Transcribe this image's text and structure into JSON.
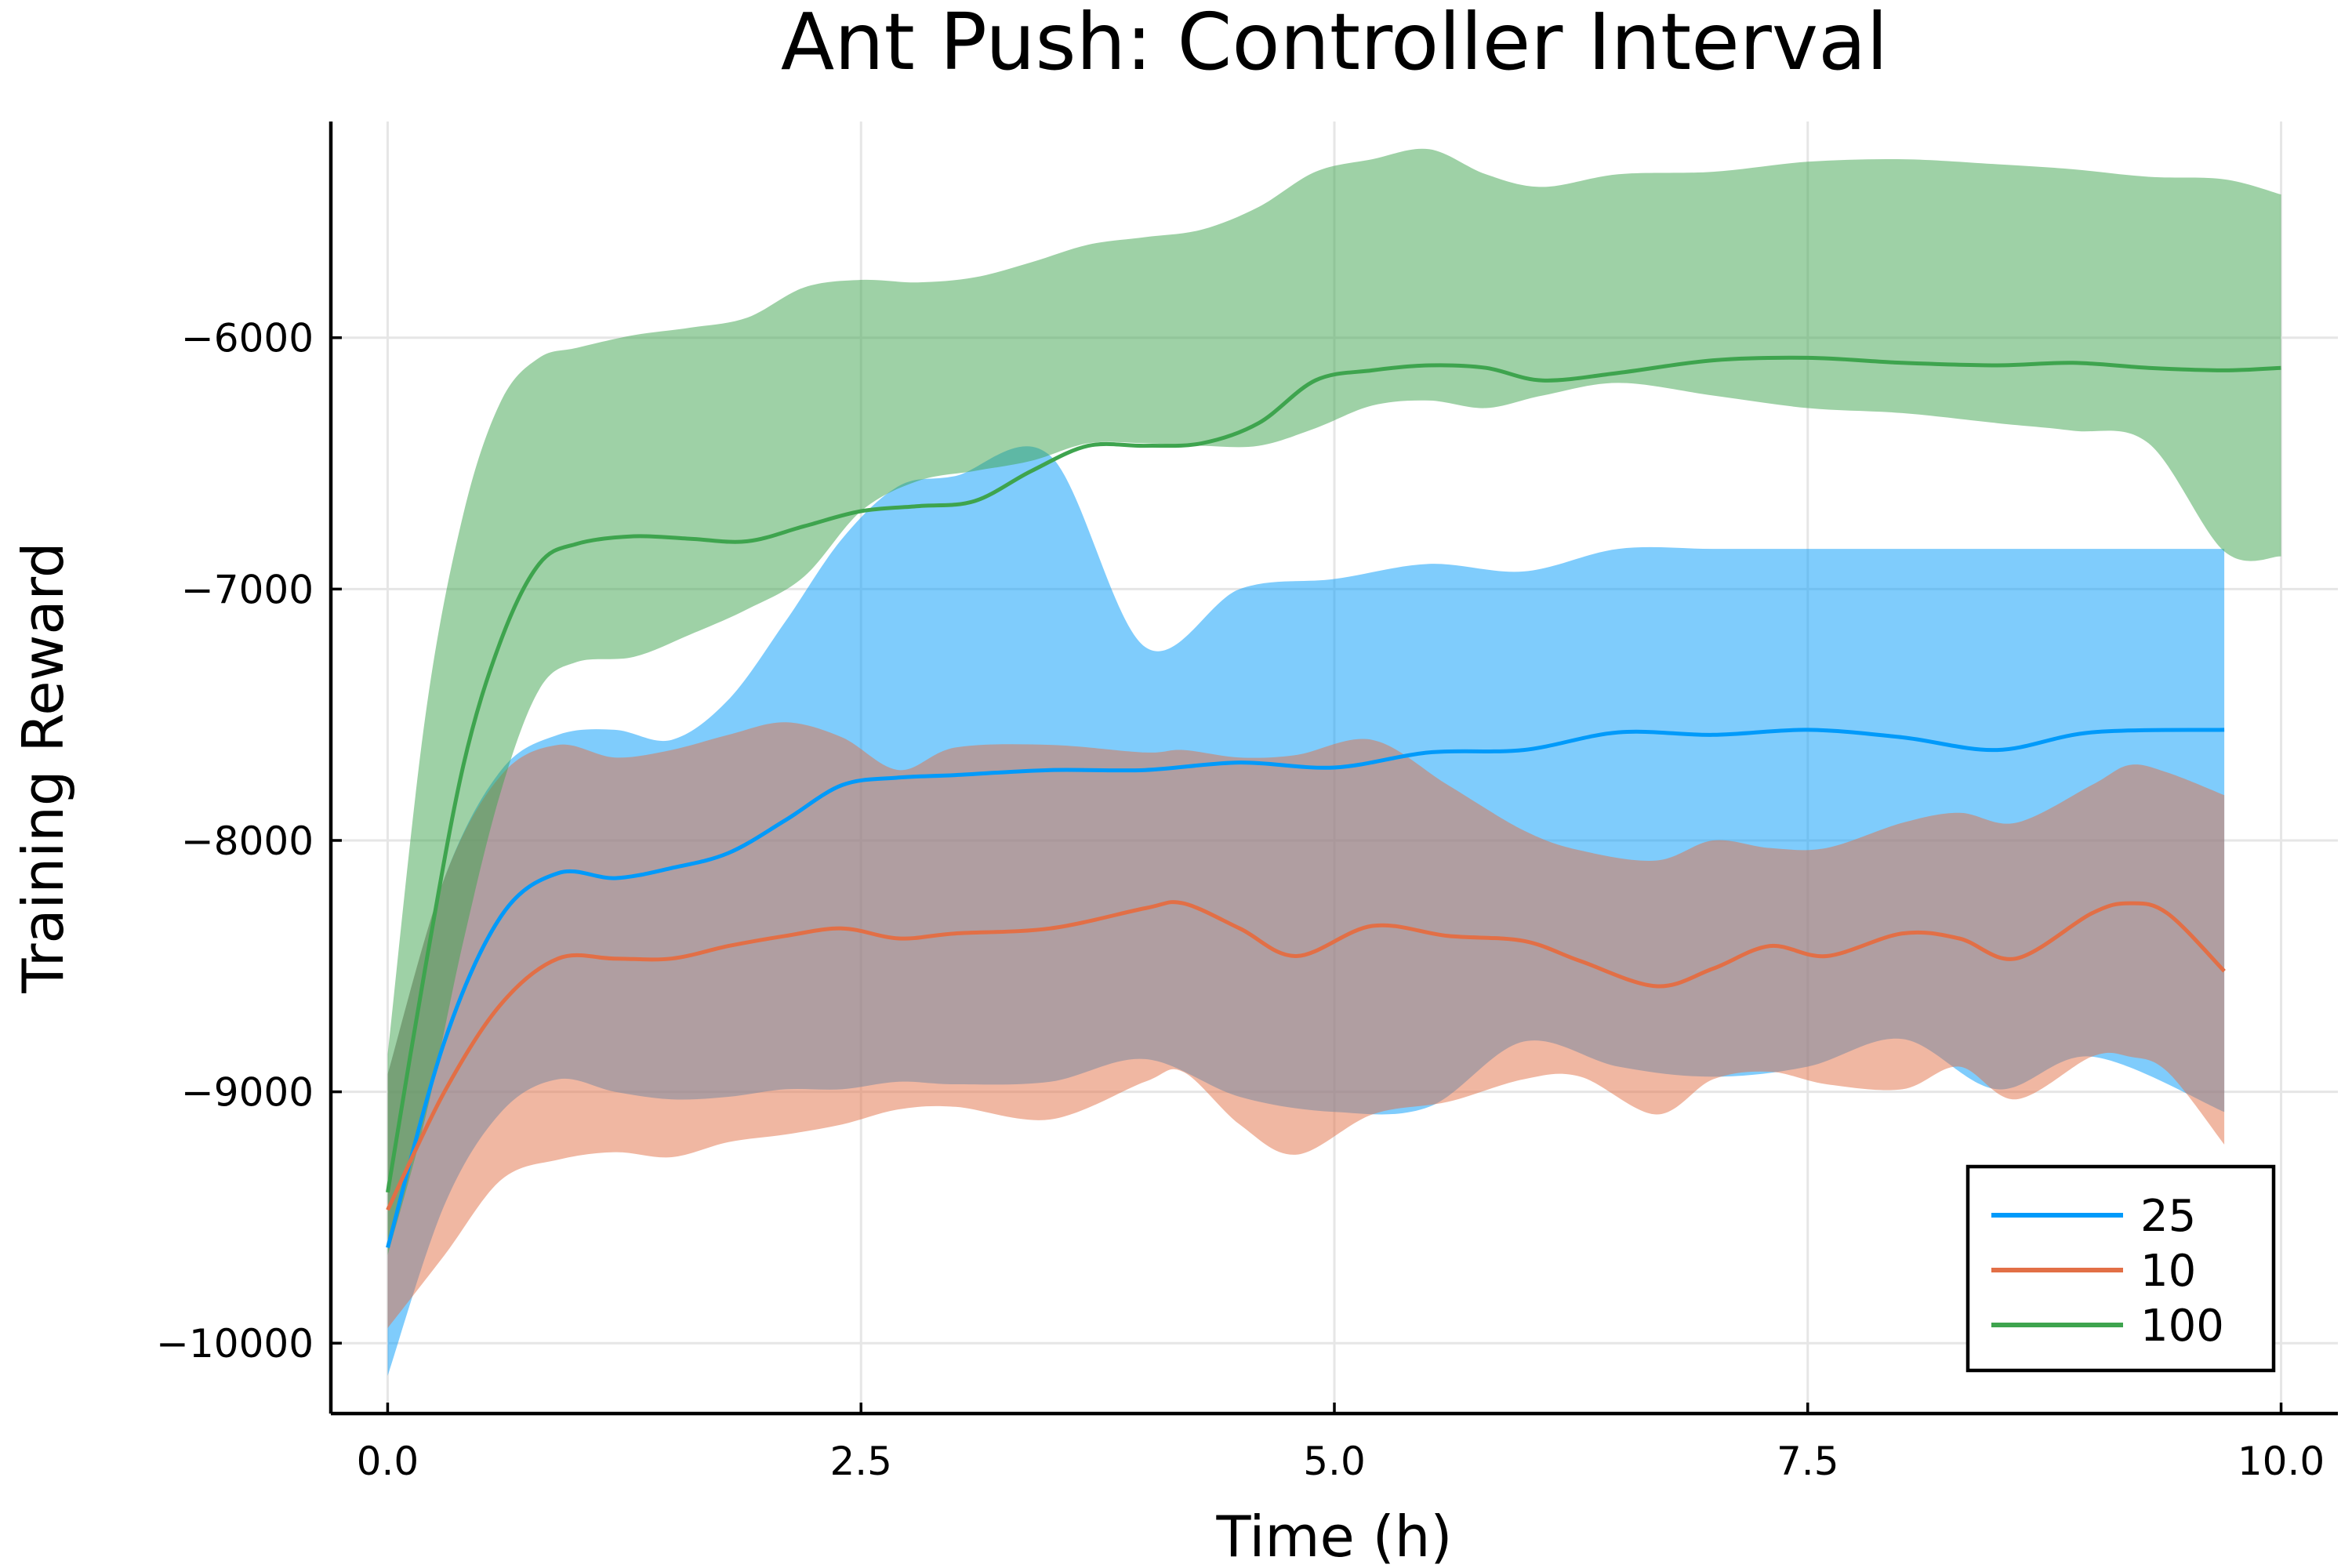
{
  "chart_data": {
    "type": "line",
    "title": "Ant Push: Controller Interval",
    "xlabel": "Time (h)",
    "ylabel": "Training Reward",
    "xlim": [
      -0.3,
      10.3
    ],
    "ylim": [
      -10280,
      -5140
    ],
    "x_ticks": [
      0,
      2.5,
      5,
      7.5,
      10
    ],
    "x_tick_labels": [
      "0.0",
      "2.5",
      "5.0",
      "7.5",
      "10.0"
    ],
    "y_ticks": [
      -10000,
      -9000,
      -8000,
      -7000,
      -6000
    ],
    "y_tick_labels": [
      "−10000",
      "−9000",
      "−8000",
      "−7000",
      "−6000"
    ],
    "grid": true,
    "legend_position": "bottom-right",
    "series": [
      {
        "name": "25",
        "color": "#009AFA",
        "x": [
          0,
          0.3,
          0.6,
          0.9,
          1.2,
          1.5,
          1.8,
          2.1,
          2.4,
          2.7,
          3.0,
          3.5,
          4.0,
          4.5,
          5.0,
          5.5,
          6.0,
          6.5,
          7.0,
          7.5,
          8.0,
          8.5,
          9.0,
          9.7
        ],
        "values": [
          -9620,
          -8800,
          -8300,
          -8130,
          -8150,
          -8110,
          -8050,
          -7920,
          -7780,
          -7750,
          -7740,
          -7720,
          -7720,
          -7690,
          -7710,
          -7650,
          -7640,
          -7570,
          -7580,
          -7560,
          -7590,
          -7640,
          -7570,
          -7560
        ],
        "upper": [
          -8930,
          -8150,
          -7720,
          -7580,
          -7560,
          -7600,
          -7440,
          -7130,
          -6800,
          -6590,
          -6550,
          -6470,
          -7230,
          -7000,
          -6960,
          -6900,
          -6930,
          -6840,
          -6840,
          -6840,
          -6840,
          -6840,
          -6840,
          -6840
        ],
        "lower": [
          -10130,
          -9450,
          -9080,
          -8950,
          -9000,
          -9030,
          -9020,
          -8990,
          -8990,
          -8960,
          -8970,
          -8960,
          -8870,
          -9020,
          -9080,
          -9060,
          -8800,
          -8900,
          -8940,
          -8900,
          -8790,
          -8990,
          -8860,
          -9080
        ]
      },
      {
        "name": "10",
        "color": "#E26F46",
        "x": [
          0,
          0.3,
          0.6,
          0.9,
          1.2,
          1.5,
          1.8,
          2.1,
          2.4,
          2.7,
          3.0,
          3.5,
          4.0,
          4.2,
          4.5,
          4.8,
          5.2,
          5.6,
          6.0,
          6.3,
          6.7,
          7.0,
          7.3,
          7.6,
          8.0,
          8.3,
          8.6,
          9.0,
          9.2,
          9.4,
          9.7
        ],
        "values": [
          -9470,
          -9000,
          -8650,
          -8470,
          -8470,
          -8470,
          -8420,
          -8380,
          -8350,
          -8390,
          -8370,
          -8350,
          -8270,
          -8250,
          -8350,
          -8460,
          -8340,
          -8380,
          -8400,
          -8480,
          -8580,
          -8510,
          -8420,
          -8460,
          -8370,
          -8390,
          -8470,
          -8290,
          -8250,
          -8290,
          -8520
        ],
        "upper": [
          -8930,
          -8150,
          -7740,
          -7620,
          -7670,
          -7640,
          -7580,
          -7530,
          -7590,
          -7720,
          -7630,
          -7620,
          -7650,
          -7640,
          -7670,
          -7660,
          -7600,
          -7780,
          -7960,
          -8040,
          -8080,
          -8000,
          -8030,
          -8030,
          -7930,
          -7890,
          -7930,
          -7780,
          -7700,
          -7730,
          -7820
        ],
        "lower": [
          -9940,
          -9650,
          -9350,
          -9270,
          -9240,
          -9260,
          -9200,
          -9170,
          -9130,
          -9070,
          -9060,
          -9110,
          -8960,
          -8920,
          -9130,
          -9250,
          -9090,
          -9040,
          -8950,
          -8940,
          -9090,
          -8950,
          -8920,
          -8970,
          -8990,
          -8900,
          -9030,
          -8860,
          -8860,
          -8920,
          -9210
        ]
      },
      {
        "name": "100",
        "color": "#3EA44E",
        "x": [
          0,
          0.2,
          0.4,
          0.6,
          0.8,
          1.0,
          1.3,
          1.6,
          1.9,
          2.2,
          2.5,
          2.8,
          3.1,
          3.4,
          3.7,
          4.0,
          4.3,
          4.6,
          4.9,
          5.2,
          5.5,
          5.8,
          6.1,
          6.5,
          7.0,
          7.5,
          8.0,
          8.5,
          8.9,
          9.3,
          9.7,
          10.0
        ],
        "values": [
          -9400,
          -8500,
          -7700,
          -7200,
          -6900,
          -6820,
          -6790,
          -6800,
          -6810,
          -6750,
          -6690,
          -6670,
          -6650,
          -6530,
          -6430,
          -6430,
          -6420,
          -6340,
          -6170,
          -6130,
          -6110,
          -6120,
          -6170,
          -6140,
          -6090,
          -6080,
          -6100,
          -6110,
          -6100,
          -6120,
          -6130,
          -6120
        ],
        "upper": [
          -8850,
          -7500,
          -6700,
          -6250,
          -6080,
          -6040,
          -5990,
          -5960,
          -5920,
          -5800,
          -5770,
          -5780,
          -5760,
          -5700,
          -5630,
          -5600,
          -5570,
          -5480,
          -5340,
          -5290,
          -5250,
          -5350,
          -5400,
          -5350,
          -5340,
          -5300,
          -5290,
          -5310,
          -5330,
          -5360,
          -5370,
          -5430
        ],
        "lower": [
          -9650,
          -9100,
          -8400,
          -7800,
          -7400,
          -7290,
          -7270,
          -7180,
          -7080,
          -6950,
          -6690,
          -6570,
          -6530,
          -6490,
          -6420,
          -6420,
          -6430,
          -6430,
          -6360,
          -6270,
          -6250,
          -6280,
          -6230,
          -6180,
          -6230,
          -6280,
          -6300,
          -6340,
          -6370,
          -6420,
          -6850,
          -6870
        ]
      }
    ]
  }
}
